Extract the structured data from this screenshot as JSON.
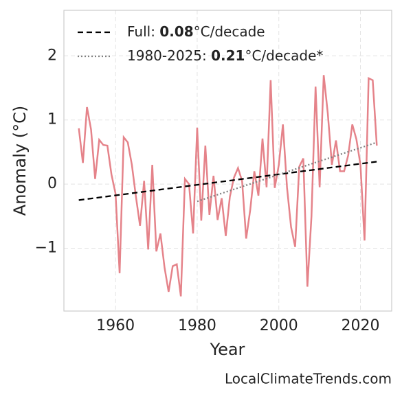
{
  "chart_data": {
    "type": "line",
    "xlabel": "Year",
    "ylabel": "Anomaly (°C)",
    "footer": "LocalClimateTrends.com",
    "x": [
      1951,
      1952,
      1953,
      1954,
      1955,
      1956,
      1957,
      1958,
      1959,
      1960,
      1961,
      1962,
      1963,
      1964,
      1965,
      1966,
      1967,
      1968,
      1969,
      1970,
      1971,
      1972,
      1973,
      1974,
      1975,
      1976,
      1977,
      1978,
      1979,
      1980,
      1981,
      1982,
      1983,
      1984,
      1985,
      1986,
      1987,
      1988,
      1989,
      1990,
      1991,
      1992,
      1993,
      1994,
      1995,
      1996,
      1997,
      1998,
      1999,
      2000,
      2001,
      2002,
      2003,
      2004,
      2005,
      2006,
      2007,
      2008,
      2009,
      2010,
      2011,
      2012,
      2013,
      2014,
      2015,
      2016,
      2017,
      2018,
      2019,
      2020,
      2021,
      2022,
      2023,
      2024
    ],
    "values": [
      0.87,
      0.33,
      1.2,
      0.85,
      0.08,
      0.69,
      0.61,
      0.6,
      0.15,
      -0.15,
      -1.39,
      0.73,
      0.65,
      0.3,
      -0.2,
      -0.65,
      0.05,
      -1.02,
      0.3,
      -1.05,
      -0.77,
      -1.3,
      -1.68,
      -1.28,
      -1.25,
      -1.75,
      0.08,
      0.0,
      -0.77,
      0.88,
      -0.57,
      0.6,
      -0.48,
      0.13,
      -0.56,
      -0.22,
      -0.81,
      -0.2,
      0.1,
      0.25,
      0.05,
      -0.85,
      -0.4,
      0.2,
      -0.18,
      0.71,
      -0.05,
      1.62,
      -0.06,
      0.3,
      0.93,
      -0.05,
      -0.67,
      -0.98,
      0.27,
      0.4,
      -1.6,
      -0.5,
      1.52,
      -0.05,
      1.7,
      1.1,
      0.3,
      0.68,
      0.2,
      0.2,
      0.45,
      0.93,
      0.7,
      0.3,
      -0.88,
      1.65,
      1.62,
      0.6
    ],
    "color": "#e5838a",
    "trends": [
      {
        "label": [
          "Full: ",
          "0.08",
          "°C/decade"
        ],
        "x": [
          1951,
          2024
        ],
        "values": [
          -0.25,
          0.35
        ],
        "color": "#000000",
        "dash": "dashed"
      },
      {
        "label": [
          "1980-2025: ",
          "0.21",
          "°C/decade*"
        ],
        "x": [
          1980,
          2024
        ],
        "values": [
          -0.27,
          0.65
        ],
        "color": "#808080",
        "dash": "dotted"
      }
    ],
    "xlim": [
      1947.35,
      2027.65
    ],
    "ylim": [
      -1.98,
      2.71
    ],
    "xticks": [
      1960,
      1980,
      2000,
      2020
    ],
    "yticks": [
      {
        "value": -1,
        "label": "−1"
      },
      0,
      1,
      2
    ],
    "grid": true,
    "legend": "upper left"
  }
}
